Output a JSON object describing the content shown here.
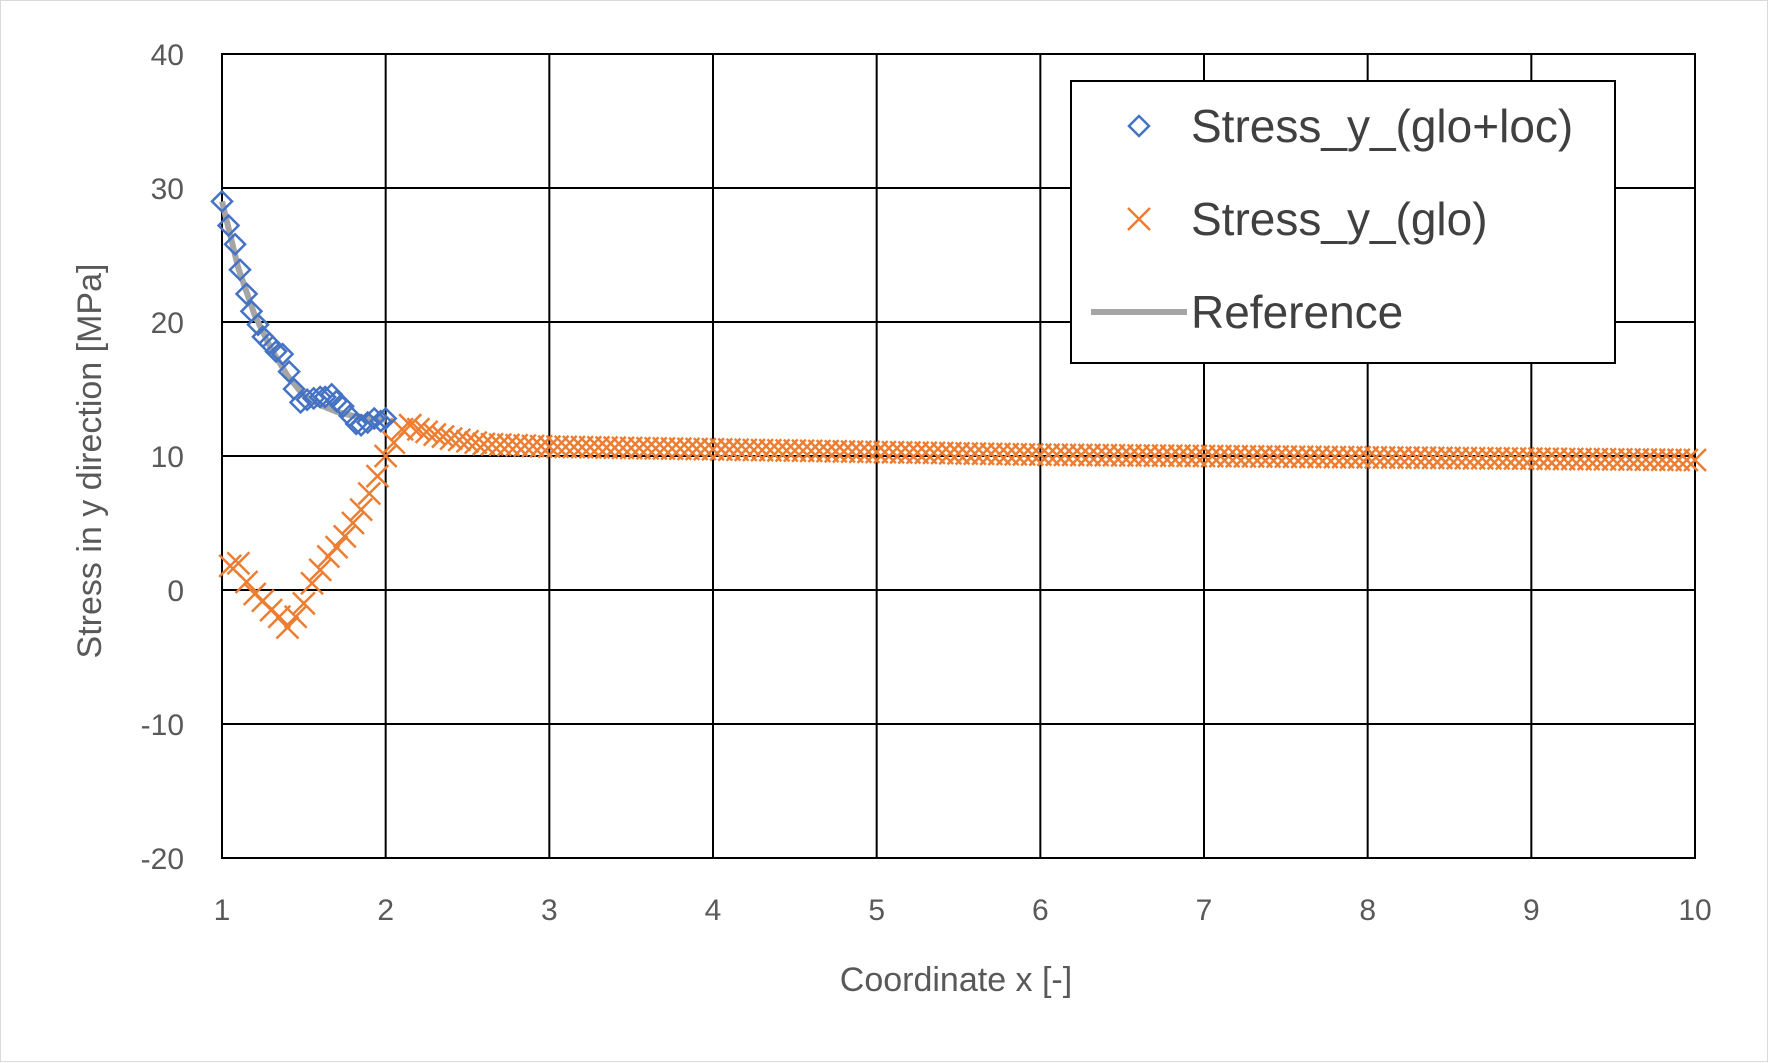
{
  "chart_data": {
    "type": "scatter",
    "title": "",
    "xlabel": "Coordinate x [-]",
    "ylabel": "Stress in y direction [MPa]",
    "xlim": [
      1,
      10
    ],
    "ylim": [
      -20,
      40
    ],
    "xticks": [
      1,
      2,
      3,
      4,
      5,
      6,
      7,
      8,
      9,
      10
    ],
    "yticks": [
      -20,
      -10,
      0,
      10,
      20,
      30,
      40
    ],
    "grid": true,
    "legend_position": "top-right",
    "series": [
      {
        "name": "Stress_y_(glo+loc)",
        "marker": "diamond",
        "color": "#4472C4",
        "x": [
          1.0,
          1.04,
          1.08,
          1.11,
          1.15,
          1.18,
          1.22,
          1.25,
          1.29,
          1.33,
          1.37,
          1.41,
          1.44,
          1.48,
          1.52,
          1.56,
          1.6,
          1.63,
          1.67,
          1.7,
          1.74,
          1.78,
          1.82,
          1.85,
          1.89,
          1.93,
          1.97,
          2.0
        ],
        "y": [
          29.0,
          27.2,
          25.8,
          23.9,
          22.1,
          20.8,
          19.8,
          18.9,
          18.4,
          17.8,
          17.6,
          16.3,
          15.0,
          14.0,
          14.2,
          14.3,
          14.4,
          14.4,
          14.6,
          14.1,
          13.7,
          13.0,
          12.4,
          12.3,
          12.5,
          12.8,
          12.6,
          12.8
        ]
      },
      {
        "name": "Stress_y_(glo)",
        "marker": "x",
        "color": "#ED7D31",
        "x": [
          1.05,
          1.1,
          1.15,
          1.2,
          1.25,
          1.3,
          1.35,
          1.4,
          1.45,
          1.5,
          1.55,
          1.6,
          1.65,
          1.7,
          1.75,
          1.8,
          1.85,
          1.9,
          1.95,
          2.0,
          2.05,
          2.1,
          2.15,
          2.2,
          2.3,
          2.4,
          2.5,
          2.6,
          2.8,
          3.0,
          3.5,
          4.0,
          5.0,
          6.0,
          7.0,
          8.0,
          9.0,
          10.0
        ],
        "y": [
          1.8,
          2.0,
          0.6,
          -0.3,
          -0.8,
          -1.5,
          -2.0,
          -2.8,
          -2.0,
          -1.0,
          0.5,
          1.5,
          2.5,
          3.2,
          4.0,
          5.0,
          6.0,
          7.2,
          8.5,
          10.0,
          11.0,
          12.0,
          12.3,
          12.0,
          11.6,
          11.3,
          11.1,
          10.9,
          10.8,
          10.7,
          10.6,
          10.5,
          10.3,
          10.1,
          10.0,
          9.9,
          9.8,
          9.7
        ]
      },
      {
        "name": "Reference",
        "marker": "line",
        "color": "#A5A5A5",
        "x": [
          1.0,
          1.1,
          1.2,
          1.3,
          1.4,
          1.5,
          1.6,
          1.7,
          1.8,
          1.9,
          2.0
        ],
        "y": [
          29.0,
          24.0,
          20.5,
          18.0,
          16.0,
          14.5,
          13.8,
          13.3,
          13.0,
          12.8,
          12.7
        ]
      }
    ]
  }
}
